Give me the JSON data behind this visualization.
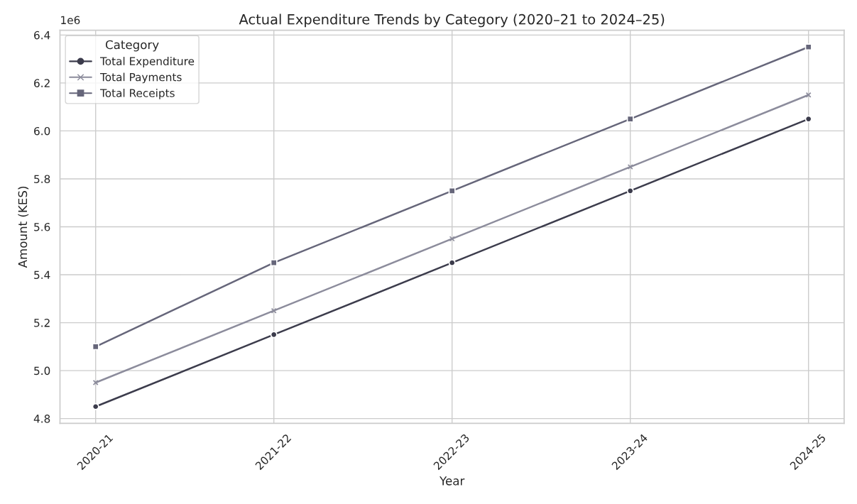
{
  "chart_data": {
    "type": "line",
    "title": "Actual Expenditure Trends by Category (2020–21 to 2024–25)",
    "xlabel": "Year",
    "ylabel": "Amount (KES)",
    "legend_title": "Category",
    "legend": "top left",
    "grid": true,
    "categories": [
      "2020-21",
      "2021-22",
      "2022-23",
      "2023-24",
      "2024-25"
    ],
    "series": [
      {
        "name": "Total Expenditure",
        "color": "#3c3c4c",
        "marker": "circle",
        "values": [
          4.85,
          5.15,
          5.45,
          5.75,
          6.05
        ]
      },
      {
        "name": "Total Payments",
        "color": "#8c8c9c",
        "marker": "cross",
        "values": [
          4.95,
          5.25,
          5.55,
          5.85,
          6.15
        ]
      },
      {
        "name": "Total Receipts",
        "color": "#66667a",
        "marker": "square",
        "values": [
          5.1,
          5.45,
          5.75,
          6.05,
          6.35
        ]
      }
    ],
    "ylim": [
      4.78,
      6.42
    ],
    "yticks": [
      {
        "value": 4.8,
        "label": "4.8"
      },
      {
        "value": 5.0,
        "label": "5.0"
      },
      {
        "value": 5.2,
        "label": "5.2"
      },
      {
        "value": 5.4,
        "label": "5.4"
      },
      {
        "value": 5.6,
        "label": "5.6"
      },
      {
        "value": 5.8,
        "label": "5.8"
      },
      {
        "value": 6.0,
        "label": "6.0"
      },
      {
        "value": 6.2,
        "label": "6.2"
      },
      {
        "value": 6.4,
        "label": "6.4"
      }
    ],
    "annotations": [
      "1e6"
    ]
  }
}
